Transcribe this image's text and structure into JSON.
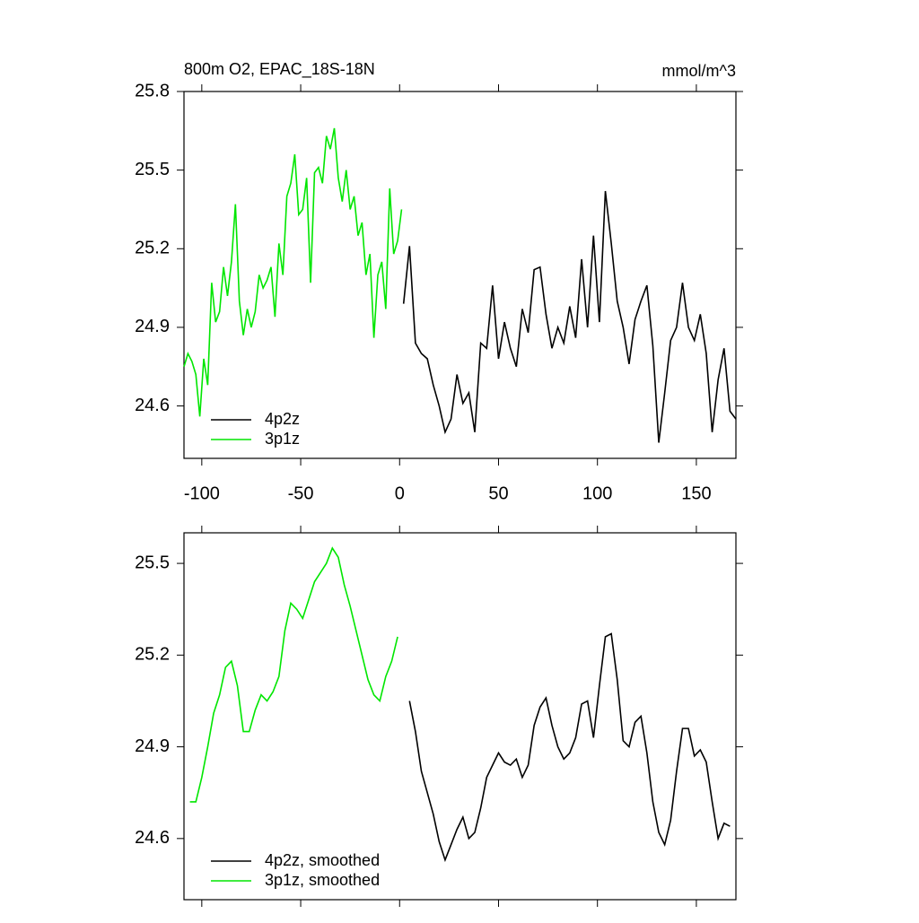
{
  "chart_data": [
    {
      "type": "line",
      "title": "800m O2, EPAC_18S-18N",
      "annotation": "mmol/m^3",
      "xlim": [
        -109,
        170
      ],
      "ylim": [
        24.4,
        25.8
      ],
      "xticks": [
        -100,
        -50,
        0,
        50,
        100,
        150
      ],
      "yticks": [
        24.6,
        24.9,
        25.2,
        25.5,
        25.8
      ],
      "xtick_labels": true,
      "legend": "lower left",
      "series": [
        {
          "name": "4p2z",
          "color": "#000000",
          "x": [
            2,
            5,
            8,
            11,
            14,
            17,
            20,
            23,
            26,
            29,
            32,
            35,
            38,
            41,
            44,
            47,
            50,
            53,
            56,
            59,
            62,
            65,
            68,
            71,
            74,
            77,
            80,
            83,
            86,
            89,
            92,
            95,
            98,
            101,
            104,
            107,
            110,
            113,
            116,
            119,
            122,
            125,
            128,
            131,
            134,
            137,
            140,
            143,
            146,
            149,
            152,
            155,
            158,
            161,
            164,
            167,
            170
          ],
          "values": [
            24.99,
            25.21,
            24.84,
            24.8,
            24.78,
            24.68,
            24.6,
            24.5,
            24.55,
            24.72,
            24.61,
            24.65,
            24.5,
            24.84,
            24.82,
            25.06,
            24.78,
            24.92,
            24.82,
            24.75,
            24.97,
            24.88,
            25.12,
            25.13,
            24.95,
            24.82,
            24.9,
            24.84,
            24.98,
            24.86,
            25.16,
            24.9,
            25.25,
            24.92,
            25.42,
            25.22,
            25.0,
            24.9,
            24.76,
            24.93,
            25.0,
            25.06,
            24.83,
            24.46,
            24.65,
            24.85,
            24.9,
            25.07,
            24.9,
            24.85,
            24.95,
            24.8,
            24.5,
            24.7,
            24.82,
            24.58,
            24.55
          ]
        },
        {
          "name": "3p1z",
          "color": "#00e600",
          "x": [
            -109,
            -107,
            -105,
            -103,
            -101,
            -99,
            -97,
            -95,
            -93,
            -91,
            -89,
            -87,
            -85,
            -83,
            -81,
            -79,
            -77,
            -75,
            -73,
            -71,
            -69,
            -67,
            -65,
            -63,
            -61,
            -59,
            -57,
            -55,
            -53,
            -51,
            -49,
            -47,
            -45,
            -43,
            -41,
            -39,
            -37,
            -35,
            -33,
            -31,
            -29,
            -27,
            -25,
            -23,
            -21,
            -19,
            -17,
            -15,
            -13,
            -11,
            -9,
            -7,
            -5,
            -3,
            -1,
            1
          ],
          "values": [
            24.75,
            24.8,
            24.77,
            24.72,
            24.56,
            24.78,
            24.68,
            25.07,
            24.92,
            24.96,
            25.13,
            25.02,
            25.15,
            25.37,
            25.0,
            24.87,
            24.97,
            24.9,
            24.96,
            25.1,
            25.05,
            25.08,
            25.13,
            24.94,
            25.22,
            25.1,
            25.4,
            25.45,
            25.56,
            25.33,
            25.35,
            25.47,
            25.07,
            25.49,
            25.51,
            25.45,
            25.63,
            25.58,
            25.66,
            25.47,
            25.38,
            25.5,
            25.35,
            25.4,
            25.25,
            25.3,
            25.1,
            25.18,
            24.86,
            25.1,
            25.15,
            24.97,
            25.43,
            25.18,
            25.23,
            25.35
          ]
        }
      ]
    },
    {
      "type": "line",
      "xlim": [
        -109,
        170
      ],
      "ylim": [
        24.4,
        25.6
      ],
      "xticks": [
        -100,
        -50,
        0,
        50,
        100,
        150
      ],
      "yticks": [
        24.6,
        24.9,
        25.2,
        25.5
      ],
      "xtick_labels": false,
      "legend": "lower left",
      "series": [
        {
          "name": "4p2z, smoothed",
          "color": "#000000",
          "x": [
            5,
            8,
            11,
            14,
            17,
            20,
            23,
            26,
            29,
            32,
            35,
            38,
            41,
            44,
            47,
            50,
            53,
            56,
            59,
            62,
            65,
            68,
            71,
            74,
            77,
            80,
            83,
            86,
            89,
            92,
            95,
            98,
            101,
            104,
            107,
            110,
            113,
            116,
            119,
            122,
            125,
            128,
            131,
            134,
            137,
            140,
            143,
            146,
            149,
            152,
            155,
            158,
            161,
            164,
            167
          ],
          "values": [
            25.05,
            24.95,
            24.82,
            24.75,
            24.68,
            24.59,
            24.53,
            24.58,
            24.63,
            24.67,
            24.6,
            24.62,
            24.7,
            24.8,
            24.84,
            24.88,
            24.85,
            24.84,
            24.86,
            24.8,
            24.84,
            24.97,
            25.03,
            25.06,
            24.97,
            24.9,
            24.86,
            24.88,
            24.93,
            25.04,
            25.05,
            24.93,
            25.1,
            25.26,
            25.27,
            25.12,
            24.92,
            24.9,
            24.98,
            25.0,
            24.88,
            24.72,
            24.62,
            24.58,
            24.66,
            24.82,
            24.96,
            24.96,
            24.87,
            24.89,
            24.85,
            24.72,
            24.6,
            24.65,
            24.64
          ]
        },
        {
          "name": "3p1z, smoothed",
          "color": "#00e600",
          "x": [
            -106,
            -103,
            -100,
            -97,
            -94,
            -91,
            -88,
            -85,
            -82,
            -79,
            -76,
            -73,
            -70,
            -67,
            -64,
            -61,
            -58,
            -55,
            -52,
            -49,
            -46,
            -43,
            -40,
            -37,
            -34,
            -31,
            -28,
            -25,
            -22,
            -19,
            -16,
            -13,
            -10,
            -7,
            -4,
            -1
          ],
          "values": [
            24.72,
            24.72,
            24.8,
            24.9,
            25.01,
            25.07,
            25.16,
            25.18,
            25.1,
            24.95,
            24.95,
            25.02,
            25.07,
            25.05,
            25.08,
            25.13,
            25.28,
            25.37,
            25.35,
            25.32,
            25.38,
            25.44,
            25.47,
            25.5,
            25.55,
            25.52,
            25.43,
            25.36,
            25.28,
            25.2,
            25.12,
            25.07,
            25.05,
            25.13,
            25.18,
            25.26
          ]
        }
      ]
    }
  ]
}
